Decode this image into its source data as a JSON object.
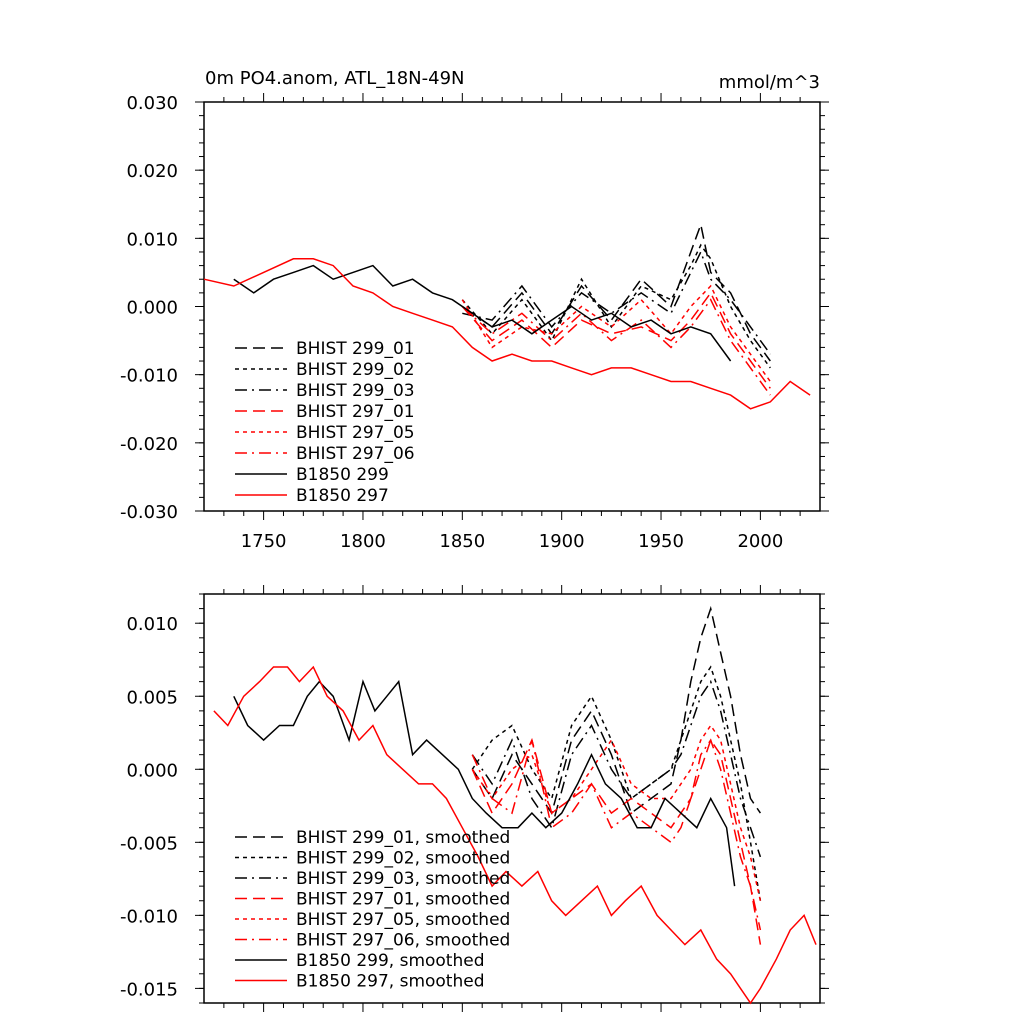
{
  "colors": {
    "black": "#000000",
    "red": "#ff0000"
  },
  "chart_data": [
    {
      "type": "line",
      "title": "0m PO4.anom, ATL_18N-49N",
      "units": "mmol/m^3",
      "xlim": [
        1720,
        2030
      ],
      "ylim": [
        -0.03,
        0.03
      ],
      "x_ticks": [
        1750,
        1800,
        1850,
        1900,
        1950,
        2000
      ],
      "x_tick_labels": [
        "1750",
        "1800",
        "1850",
        "1900",
        "1950",
        "2000"
      ],
      "y_ticks": [
        -0.03,
        -0.02,
        -0.01,
        0.0,
        0.01,
        0.02,
        0.03
      ],
      "y_tick_labels": [
        "-0.030",
        "-0.020",
        "-0.010",
        "0.000",
        "0.010",
        "0.020",
        "0.030"
      ],
      "legend_position": "bottom-left",
      "series": [
        {
          "name": "BHIST 299_01",
          "color": "black",
          "dash": "dashed",
          "x": [
            1850,
            1865,
            1880,
            1895,
            1910,
            1925,
            1940,
            1955,
            1965,
            1970,
            1975,
            1985,
            1995,
            2005
          ],
          "y": [
            0.0,
            -0.003,
            0.002,
            -0.004,
            0.003,
            -0.002,
            0.004,
            0.0,
            0.008,
            0.012,
            0.005,
            0.002,
            -0.004,
            -0.008
          ]
        },
        {
          "name": "BHIST 299_02",
          "color": "black",
          "dash": "dotted",
          "x": [
            1850,
            1865,
            1880,
            1895,
            1910,
            1925,
            1940,
            1955,
            1965,
            1970,
            1975,
            1985,
            1995,
            2005
          ],
          "y": [
            0.001,
            -0.004,
            0.001,
            -0.005,
            0.004,
            -0.003,
            0.003,
            0.001,
            0.006,
            0.009,
            0.007,
            0.0,
            -0.005,
            -0.009
          ]
        },
        {
          "name": "BHIST 299_03",
          "color": "black",
          "dash": "dashdot",
          "x": [
            1850,
            1865,
            1880,
            1895,
            1910,
            1925,
            1940,
            1955,
            1965,
            1970,
            1975,
            1985,
            1995,
            2005
          ],
          "y": [
            -0.001,
            -0.002,
            0.003,
            -0.003,
            0.002,
            -0.001,
            0.002,
            -0.001,
            0.005,
            0.008,
            0.004,
            0.001,
            -0.003,
            -0.007
          ]
        },
        {
          "name": "BHIST 297_01",
          "color": "red",
          "dash": "dashed",
          "x": [
            1850,
            1865,
            1880,
            1895,
            1910,
            1925,
            1940,
            1955,
            1965,
            1975,
            1985,
            1995,
            2005
          ],
          "y": [
            0.0,
            -0.005,
            -0.002,
            -0.006,
            -0.002,
            -0.004,
            -0.003,
            -0.005,
            -0.002,
            0.002,
            -0.004,
            -0.008,
            -0.012
          ]
        },
        {
          "name": "BHIST 297_05",
          "color": "red",
          "dash": "dotted",
          "x": [
            1850,
            1865,
            1880,
            1895,
            1910,
            1925,
            1940,
            1955,
            1965,
            1975,
            1985,
            1995,
            2005
          ],
          "y": [
            0.001,
            -0.006,
            -0.003,
            -0.004,
            0.0,
            -0.003,
            0.001,
            -0.004,
            0.0,
            0.003,
            -0.003,
            -0.007,
            -0.011
          ]
        },
        {
          "name": "BHIST 297_06",
          "color": "red",
          "dash": "dashdot",
          "x": [
            1850,
            1865,
            1880,
            1895,
            1910,
            1925,
            1940,
            1955,
            1965,
            1975,
            1985,
            1995,
            2005
          ],
          "y": [
            0.0,
            -0.004,
            -0.001,
            -0.005,
            -0.001,
            -0.005,
            -0.002,
            -0.006,
            -0.003,
            0.001,
            -0.005,
            -0.009,
            -0.013
          ]
        },
        {
          "name": "B1850 299",
          "color": "black",
          "dash": "solid",
          "x": [
            1735,
            1745,
            1755,
            1765,
            1775,
            1785,
            1795,
            1805,
            1815,
            1825,
            1835,
            1845,
            1855,
            1865,
            1875,
            1885,
            1895,
            1905,
            1915,
            1925,
            1935,
            1945,
            1955,
            1965,
            1975,
            1985
          ],
          "y": [
            0.004,
            0.002,
            0.004,
            0.005,
            0.006,
            0.004,
            0.005,
            0.006,
            0.003,
            0.004,
            0.002,
            0.001,
            -0.001,
            -0.003,
            -0.002,
            -0.004,
            -0.002,
            0.0,
            -0.002,
            -0.001,
            -0.003,
            -0.002,
            -0.004,
            -0.003,
            -0.004,
            -0.008
          ]
        },
        {
          "name": "B1850 297",
          "color": "red",
          "dash": "solid",
          "x": [
            1720,
            1735,
            1750,
            1765,
            1775,
            1785,
            1795,
            1805,
            1815,
            1825,
            1835,
            1845,
            1855,
            1865,
            1875,
            1885,
            1895,
            1905,
            1915,
            1925,
            1935,
            1945,
            1955,
            1965,
            1975,
            1985,
            1995,
            2005,
            2015,
            2025
          ],
          "y": [
            0.004,
            0.003,
            0.005,
            0.007,
            0.007,
            0.006,
            0.003,
            0.002,
            0.0,
            -0.001,
            -0.002,
            -0.003,
            -0.006,
            -0.008,
            -0.007,
            -0.008,
            -0.008,
            -0.009,
            -0.01,
            -0.009,
            -0.009,
            -0.01,
            -0.011,
            -0.011,
            -0.012,
            -0.013,
            -0.015,
            -0.014,
            -0.011,
            -0.013
          ]
        }
      ]
    },
    {
      "type": "line",
      "title": "",
      "xlim": [
        1720,
        2030
      ],
      "ylim": [
        -0.016,
        0.012
      ],
      "x_ticks": [
        1750,
        1800,
        1850,
        1900,
        1950,
        2000
      ],
      "y_ticks": [
        -0.015,
        -0.01,
        -0.005,
        0.0,
        0.005,
        0.01
      ],
      "y_tick_labels": [
        "-0.015",
        "-0.010",
        "-0.005",
        "0.000",
        "0.005",
        "0.010"
      ],
      "legend_position": "bottom-left",
      "series": [
        {
          "name": "BHIST 299_01, smoothed",
          "color": "black",
          "dash": "dashed",
          "x": [
            1855,
            1865,
            1875,
            1885,
            1895,
            1905,
            1915,
            1925,
            1935,
            1945,
            1955,
            1960,
            1965,
            1970,
            1975,
            1980,
            1985,
            1990,
            1995,
            2000
          ],
          "y": [
            0.0,
            -0.002,
            0.001,
            -0.001,
            -0.003,
            0.002,
            0.004,
            0.001,
            -0.003,
            -0.002,
            -0.001,
            0.002,
            0.006,
            0.009,
            0.011,
            0.008,
            0.005,
            0.001,
            -0.002,
            -0.003
          ]
        },
        {
          "name": "BHIST 299_02, smoothed",
          "color": "black",
          "dash": "dotted",
          "x": [
            1855,
            1865,
            1875,
            1885,
            1895,
            1905,
            1915,
            1925,
            1935,
            1945,
            1955,
            1960,
            1965,
            1970,
            1975,
            1980,
            1985,
            1990,
            1995,
            2000
          ],
          "y": [
            0.0,
            0.002,
            0.003,
            0.0,
            -0.002,
            0.003,
            0.005,
            0.002,
            -0.002,
            -0.001,
            0.0,
            0.002,
            0.004,
            0.006,
            0.007,
            0.005,
            0.002,
            -0.001,
            -0.005,
            -0.009
          ]
        },
        {
          "name": "BHIST 299_03, smoothed",
          "color": "black",
          "dash": "dashdot",
          "x": [
            1855,
            1865,
            1875,
            1885,
            1895,
            1905,
            1915,
            1925,
            1935,
            1945,
            1955,
            1960,
            1965,
            1970,
            1975,
            1980,
            1985,
            1990,
            1995,
            2000
          ],
          "y": [
            0.001,
            -0.001,
            0.002,
            -0.002,
            -0.004,
            0.001,
            0.003,
            0.0,
            -0.002,
            -0.001,
            0.0,
            0.001,
            0.003,
            0.005,
            0.006,
            0.004,
            0.001,
            -0.002,
            -0.004,
            -0.006
          ]
        },
        {
          "name": "BHIST 297_01, smoothed",
          "color": "red",
          "dash": "dashed",
          "x": [
            1855,
            1865,
            1875,
            1885,
            1895,
            1905,
            1915,
            1925,
            1935,
            1945,
            1955,
            1960,
            1965,
            1970,
            1975,
            1980,
            1985,
            1990,
            1995,
            2000
          ],
          "y": [
            0.0,
            -0.003,
            -0.001,
            0.002,
            -0.003,
            -0.002,
            -0.001,
            -0.003,
            -0.002,
            -0.003,
            -0.004,
            -0.003,
            -0.002,
            0.0,
            0.002,
            0.001,
            -0.002,
            -0.005,
            -0.008,
            -0.012
          ]
        },
        {
          "name": "BHIST 297_05, smoothed",
          "color": "red",
          "dash": "dotted",
          "x": [
            1855,
            1865,
            1875,
            1885,
            1895,
            1905,
            1915,
            1925,
            1935,
            1945,
            1955,
            1960,
            1965,
            1970,
            1975,
            1980,
            1985,
            1990,
            1995,
            2000
          ],
          "y": [
            0.0,
            -0.002,
            0.0,
            0.001,
            -0.003,
            -0.002,
            0.0,
            0.002,
            -0.001,
            -0.002,
            -0.002,
            -0.001,
            0.0,
            0.002,
            0.003,
            0.002,
            -0.001,
            -0.004,
            -0.006,
            -0.009
          ]
        },
        {
          "name": "BHIST 297_06, smoothed",
          "color": "red",
          "dash": "dashdot",
          "x": [
            1855,
            1865,
            1875,
            1885,
            1895,
            1905,
            1915,
            1925,
            1935,
            1945,
            1955,
            1960,
            1965,
            1970,
            1975,
            1980,
            1985,
            1990,
            1995,
            2000
          ],
          "y": [
            0.001,
            -0.002,
            -0.003,
            0.002,
            -0.004,
            -0.003,
            -0.001,
            -0.004,
            -0.003,
            -0.004,
            -0.005,
            -0.004,
            -0.002,
            0.001,
            0.002,
            0.0,
            -0.003,
            -0.006,
            -0.008,
            -0.011
          ]
        },
        {
          "name": "B1850 299, smoothed",
          "color": "black",
          "dash": "solid",
          "x": [
            1735,
            1742,
            1750,
            1758,
            1765,
            1772,
            1778,
            1785,
            1793,
            1800,
            1806,
            1812,
            1818,
            1825,
            1832,
            1840,
            1848,
            1855,
            1862,
            1870,
            1878,
            1885,
            1892,
            1900,
            1908,
            1915,
            1922,
            1930,
            1938,
            1945,
            1952,
            1960,
            1968,
            1975,
            1983,
            1987
          ],
          "y": [
            0.005,
            0.003,
            0.002,
            0.003,
            0.003,
            0.005,
            0.006,
            0.005,
            0.002,
            0.006,
            0.004,
            0.005,
            0.006,
            0.001,
            0.002,
            0.001,
            0.0,
            -0.002,
            -0.003,
            -0.004,
            -0.004,
            -0.003,
            -0.004,
            -0.003,
            -0.001,
            0.001,
            -0.001,
            -0.002,
            -0.004,
            -0.004,
            -0.002,
            -0.003,
            -0.004,
            -0.002,
            -0.004,
            -0.008
          ]
        },
        {
          "name": "B1850 297, smoothed",
          "color": "red",
          "dash": "solid",
          "x": [
            1725,
            1732,
            1740,
            1748,
            1755,
            1762,
            1768,
            1775,
            1782,
            1790,
            1798,
            1805,
            1812,
            1820,
            1828,
            1835,
            1842,
            1850,
            1858,
            1865,
            1872,
            1880,
            1888,
            1895,
            1902,
            1910,
            1918,
            1925,
            1932,
            1940,
            1948,
            1955,
            1962,
            1970,
            1978,
            1985,
            1990,
            1995,
            2000,
            2008,
            2015,
            2022,
            2028
          ],
          "y": [
            0.004,
            0.003,
            0.005,
            0.006,
            0.007,
            0.007,
            0.006,
            0.007,
            0.005,
            0.004,
            0.002,
            0.003,
            0.001,
            0.0,
            -0.001,
            -0.001,
            -0.002,
            -0.004,
            -0.006,
            -0.008,
            -0.007,
            -0.008,
            -0.007,
            -0.009,
            -0.01,
            -0.009,
            -0.008,
            -0.01,
            -0.009,
            -0.008,
            -0.01,
            -0.011,
            -0.012,
            -0.011,
            -0.013,
            -0.014,
            -0.015,
            -0.016,
            -0.015,
            -0.013,
            -0.011,
            -0.01,
            -0.012
          ]
        }
      ]
    }
  ]
}
